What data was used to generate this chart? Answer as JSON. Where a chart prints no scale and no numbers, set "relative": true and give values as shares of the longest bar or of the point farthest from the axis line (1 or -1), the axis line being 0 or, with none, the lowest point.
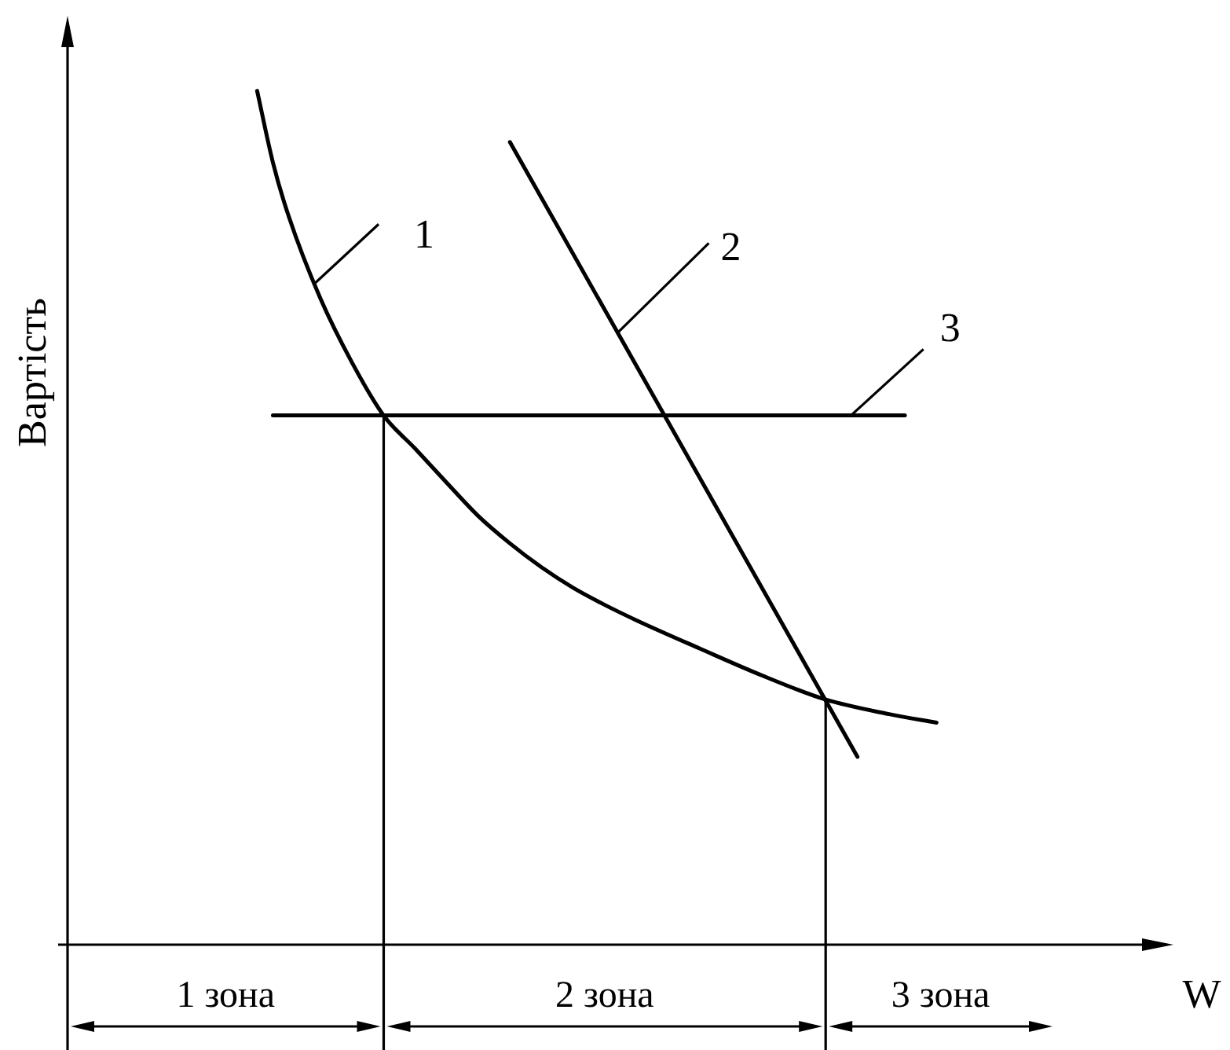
{
  "chart_data": {
    "type": "line",
    "relative": true,
    "xlabel": "W",
    "ylabel": "Вартість",
    "categories": [
      null,
      null,
      null,
      null,
      null,
      null,
      null,
      null,
      null,
      null,
      null,
      null,
      null,
      null,
      null,
      null,
      null,
      null,
      null,
      null,
      null,
      null,
      null,
      null,
      null,
      null,
      null,
      null,
      null,
      null,
      null,
      null,
      null,
      null,
      null,
      null,
      null,
      null,
      null,
      null,
      null,
      null,
      null,
      null,
      null,
      null,
      null,
      null,
      null,
      null,
      null,
      null,
      null,
      null,
      null,
      null,
      null,
      null,
      null,
      null,
      null,
      null,
      null,
      null,
      null,
      null,
      null,
      null,
      null,
      null,
      null
    ],
    "series": [
      {
        "name": "1",
        "color": "#000000",
        "values": [
          null,
          null,
          null,
          null,
          null,
          null,
          null,
          null,
          null,
          null,
          null,
          null,
          1,
          0.916,
          0.853,
          null,
          0.757,
          null,
          0.682,
          null,
          0.62,
          null,
          0.581,
          null,
          0.541,
          null,
          0.502,
          null,
          0.47,
          null,
          0.442,
          null,
          0.418,
          null,
          0.398,
          null,
          0.38,
          null,
          null,
          null,
          0.347,
          null,
          null,
          null,
          0.315,
          null,
          null,
          null,
          0.287,
          null,
          null,
          null,
          0.27,
          null,
          null,
          0.26,
          null,
          null,
          null,
          null,
          null,
          null,
          null,
          null,
          null,
          null,
          null,
          null,
          null,
          null,
          null
        ]
      },
      {
        "name": "2",
        "color": "#000000",
        "values": [
          null,
          null,
          null,
          null,
          null,
          null,
          null,
          null,
          null,
          null,
          null,
          null,
          null,
          null,
          null,
          null,
          null,
          null,
          null,
          null,
          null,
          null,
          null,
          null,
          null,
          null,
          null,
          null,
          0.94,
          null,
          null,
          null,
          null,
          null,
          null,
          null,
          null,
          null,
          null,
          null,
          null,
          null,
          null,
          null,
          null,
          null,
          null,
          null,
          null,
          null,
          0.22,
          null,
          null,
          null,
          null,
          null,
          null,
          null,
          null,
          null,
          null,
          null,
          null,
          null,
          null,
          null,
          null,
          null,
          null,
          null,
          null
        ]
      },
      {
        "name": "3",
        "color": "#000000",
        "values": [
          null,
          null,
          null,
          null,
          null,
          null,
          null,
          null,
          null,
          null,
          null,
          null,
          null,
          0.62,
          null,
          null,
          null,
          null,
          null,
          null,
          null,
          null,
          null,
          null,
          null,
          null,
          null,
          null,
          null,
          null,
          null,
          null,
          null,
          null,
          null,
          null,
          null,
          null,
          null,
          null,
          null,
          null,
          null,
          null,
          null,
          null,
          null,
          null,
          null,
          null,
          null,
          null,
          null,
          0.62,
          null,
          null,
          null,
          null,
          null,
          null,
          null,
          null,
          null,
          null,
          null,
          null,
          null,
          null,
          null,
          null,
          null
        ]
      }
    ],
    "annotations": [
      "1 зона",
      "2 зона",
      "3 зона"
    ]
  }
}
